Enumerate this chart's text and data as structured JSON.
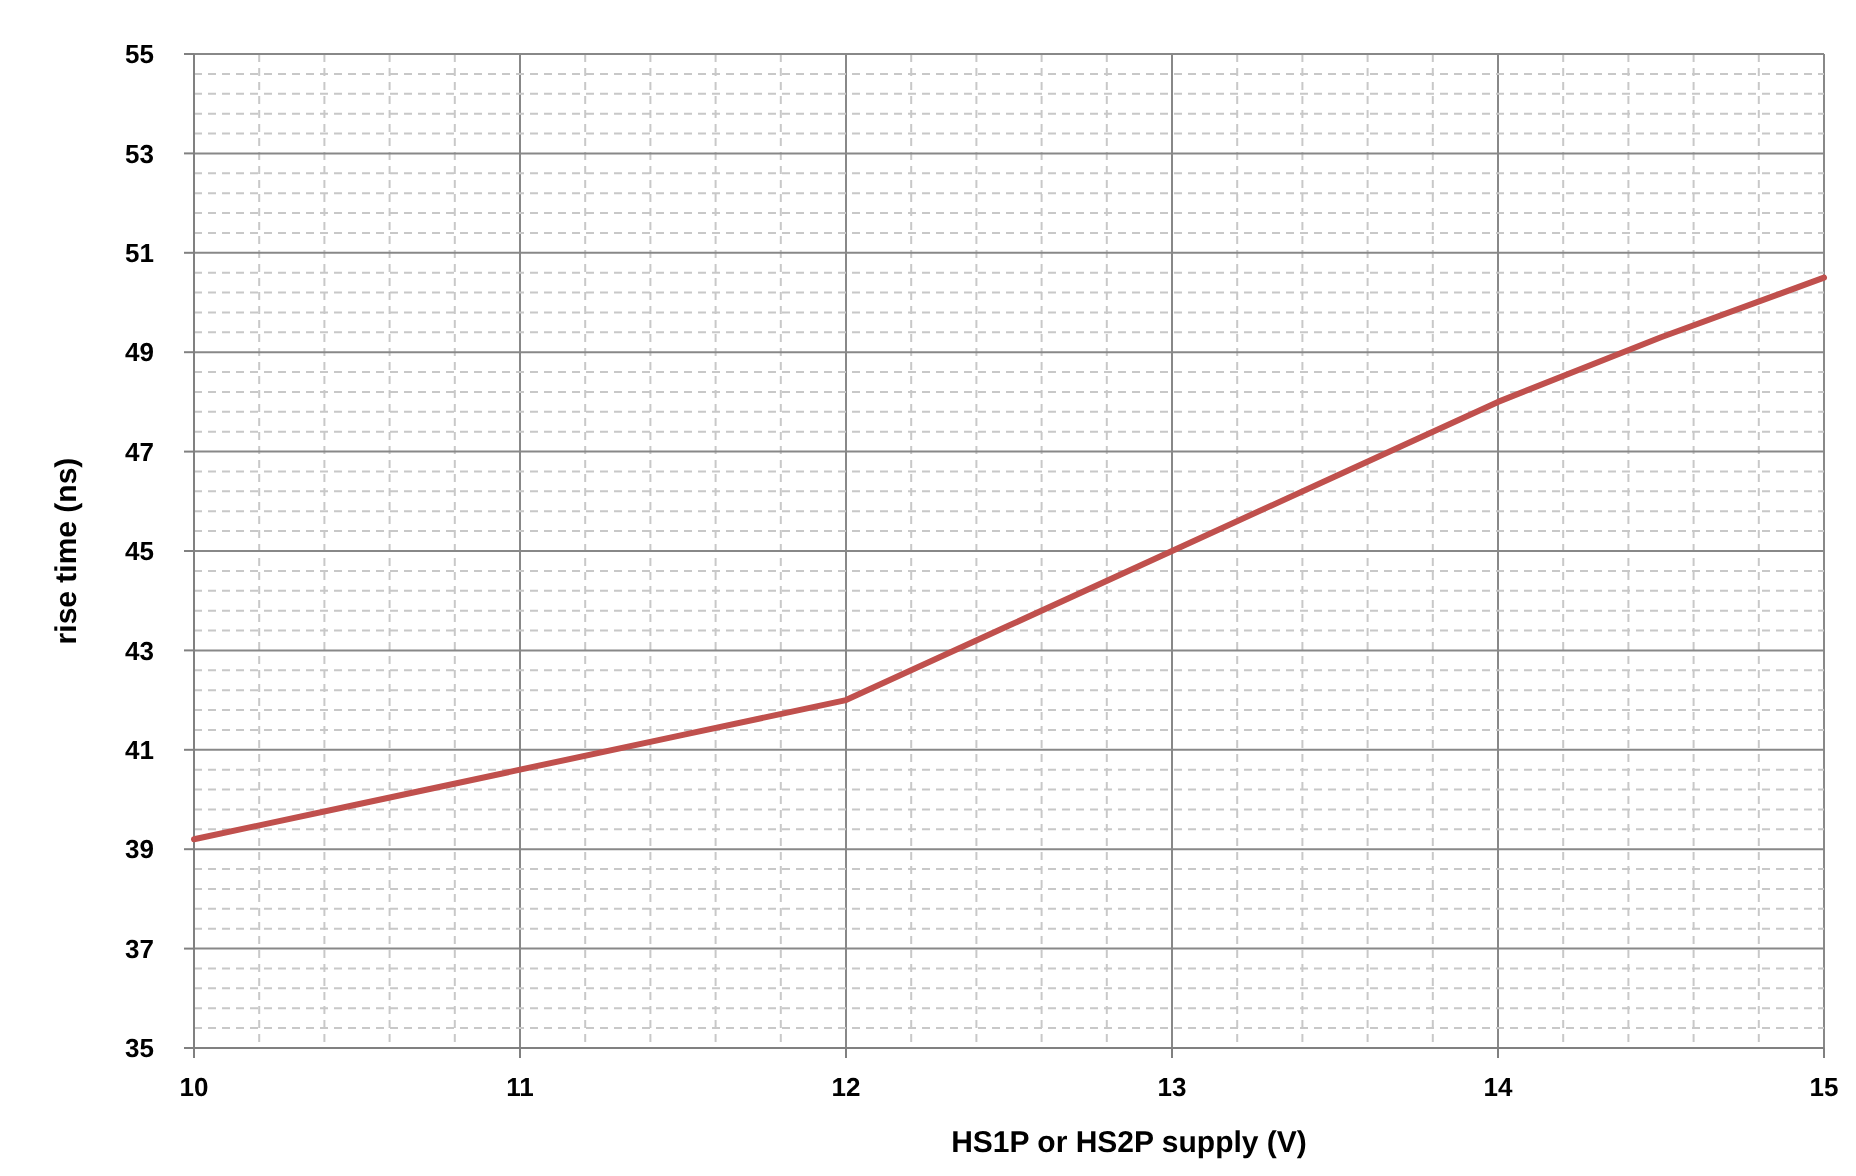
{
  "chart_data": {
    "type": "line",
    "xlabel": "HS1P or HS2P supply (V)",
    "ylabel": "rise time (ns)",
    "x": [
      10,
      10.5,
      11,
      11.5,
      12,
      12.5,
      13,
      13.5,
      14,
      14.5,
      15
    ],
    "series": [
      {
        "color": "#c0504d",
        "values": [
          39.2,
          39.9,
          40.6,
          41.3,
          42.0,
          43.5,
          45.0,
          46.5,
          48.0,
          49.3,
          50.5
        ]
      }
    ],
    "xlim": [
      10,
      15
    ],
    "xticks": [
      10,
      {
        "value": 10.2,
        "label": null
      },
      {
        "value": 10.4,
        "label": null
      },
      {
        "value": 10.6,
        "label": null
      },
      {
        "value": 10.8,
        "label": null
      },
      11,
      {
        "value": 11.2,
        "label": null
      },
      {
        "value": 11.4,
        "label": null
      },
      {
        "value": 11.6,
        "label": null
      },
      {
        "value": 11.8,
        "label": null
      },
      12,
      {
        "value": 12.2,
        "label": null
      },
      {
        "value": 12.4,
        "label": null
      },
      {
        "value": 12.6,
        "label": null
      },
      {
        "value": 12.8,
        "label": null
      },
      13,
      {
        "value": 13.2,
        "label": null
      },
      {
        "value": 13.4,
        "label": null
      },
      {
        "value": 13.6,
        "label": null
      },
      {
        "value": 13.8,
        "label": null
      },
      14,
      {
        "value": 14.2,
        "label": null
      },
      {
        "value": 14.4,
        "label": null
      },
      {
        "value": 14.6,
        "label": null
      },
      {
        "value": 14.8,
        "label": null
      },
      15
    ],
    "ylim": [
      35,
      55
    ],
    "yticks": [
      35,
      {
        "value": 35.4,
        "label": null
      },
      {
        "value": 35.8,
        "label": null
      },
      {
        "value": 36.2,
        "label": null
      },
      {
        "value": 36.6,
        "label": null
      },
      37,
      {
        "value": 37.4,
        "label": null
      },
      {
        "value": 37.8,
        "label": null
      },
      {
        "value": 38.2,
        "label": null
      },
      {
        "value": 38.6,
        "label": null
      },
      39,
      {
        "value": 39.4,
        "label": null
      },
      {
        "value": 39.8,
        "label": null
      },
      {
        "value": 40.2,
        "label": null
      },
      {
        "value": 40.6,
        "label": null
      },
      41,
      {
        "value": 41.4,
        "label": null
      },
      {
        "value": 41.8,
        "label": null
      },
      {
        "value": 42.2,
        "label": null
      },
      {
        "value": 42.6,
        "label": null
      },
      43,
      {
        "value": 43.4,
        "label": null
      },
      {
        "value": 43.8,
        "label": null
      },
      {
        "value": 44.2,
        "label": null
      },
      {
        "value": 44.6,
        "label": null
      },
      45,
      {
        "value": 45.4,
        "label": null
      },
      {
        "value": 45.8,
        "label": null
      },
      {
        "value": 46.2,
        "label": null
      },
      {
        "value": 46.6,
        "label": null
      },
      47,
      {
        "value": 47.4,
        "label": null
      },
      {
        "value": 47.8,
        "label": null
      },
      {
        "value": 48.2,
        "label": null
      },
      {
        "value": 48.6,
        "label": null
      },
      49,
      {
        "value": 49.4,
        "label": null
      },
      {
        "value": 49.8,
        "label": null
      },
      {
        "value": 50.2,
        "label": null
      },
      {
        "value": 50.6,
        "label": null
      },
      51,
      {
        "value": 51.4,
        "label": null
      },
      {
        "value": 51.8,
        "label": null
      },
      {
        "value": 52.2,
        "label": null
      },
      {
        "value": 52.6,
        "label": null
      },
      53,
      {
        "value": 53.4,
        "label": null
      },
      {
        "value": 53.8,
        "label": null
      },
      {
        "value": 54.2,
        "label": null
      },
      {
        "value": 54.6,
        "label": null
      },
      55
    ],
    "grid": true,
    "marker": "none",
    "line_style": "solid"
  }
}
